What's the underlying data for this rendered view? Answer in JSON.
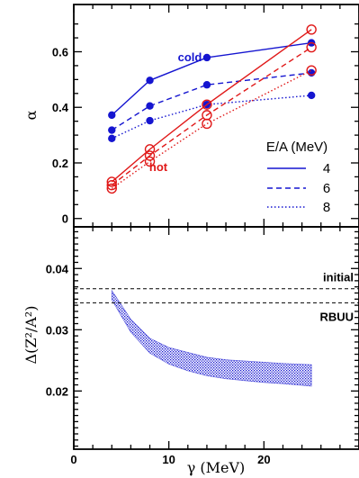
{
  "chart_data": [
    {
      "type": "line",
      "ylabel": "α",
      "xlim": [
        0,
        30
      ],
      "ylim": [
        -0.03,
        0.77
      ],
      "yticks": [
        "0",
        "0.2",
        "0.4",
        "0.6"
      ],
      "colors": {
        "cold": "#1515d0",
        "hot": "#e01818"
      },
      "series": [
        {
          "group": "cold",
          "ea": "4",
          "style": "solid",
          "marker": "filled",
          "x": [
            4,
            8,
            14,
            25
          ],
          "y": [
            0.372,
            0.497,
            0.579,
            0.632
          ]
        },
        {
          "group": "cold",
          "ea": "6",
          "style": "dashed",
          "marker": "filled",
          "x": [
            4,
            8,
            14,
            25
          ],
          "y": [
            0.318,
            0.405,
            0.481,
            0.524
          ]
        },
        {
          "group": "cold",
          "ea": "8",
          "style": "dotted",
          "marker": "filled",
          "x": [
            4,
            8,
            14,
            25
          ],
          "y": [
            0.288,
            0.352,
            0.41,
            0.443
          ]
        },
        {
          "group": "hot",
          "ea": "4",
          "style": "solid",
          "marker": "open",
          "x": [
            4,
            8,
            14,
            25
          ],
          "y": [
            0.132,
            0.249,
            0.41,
            0.68
          ]
        },
        {
          "group": "hot",
          "ea": "6",
          "style": "dashed",
          "marker": "open",
          "x": [
            4,
            8,
            14,
            25
          ],
          "y": [
            0.12,
            0.226,
            0.372,
            0.616
          ]
        },
        {
          "group": "hot",
          "ea": "8",
          "style": "dotted",
          "marker": "open",
          "x": [
            4,
            8,
            14,
            25
          ],
          "y": [
            0.108,
            0.205,
            0.341,
            0.533
          ]
        }
      ],
      "annotations": {
        "cold": "cold",
        "hot": "hot"
      },
      "legend": {
        "title": "E/A (MeV)",
        "placement": "right",
        "entries": [
          {
            "label": "4",
            "style": "solid"
          },
          {
            "label": "6",
            "style": "dashed"
          },
          {
            "label": "8",
            "style": "dotted"
          }
        ]
      }
    },
    {
      "type": "area",
      "ylabel": "Δ(Z²/A²)",
      "xlabel": "γ (MeV)",
      "xlim": [
        0,
        30
      ],
      "ylim": [
        0.0105,
        0.0468
      ],
      "xticks": [
        "0",
        "10",
        "20"
      ],
      "yticks": [
        "0.02",
        "0.03",
        "0.04"
      ],
      "band": {
        "color": "#1515d0",
        "x": [
          4,
          6,
          8,
          10,
          12,
          14,
          16,
          18,
          20,
          22,
          25
        ],
        "upper": [
          0.0364,
          0.0317,
          0.0286,
          0.0271,
          0.0263,
          0.0255,
          0.0251,
          0.0249,
          0.0247,
          0.0245,
          0.0243
        ],
        "lower": [
          0.0349,
          0.0296,
          0.0262,
          0.0244,
          0.0233,
          0.0225,
          0.022,
          0.0217,
          0.0214,
          0.0212,
          0.0208
        ]
      },
      "hlines": [
        {
          "label": "initial",
          "y": 0.0367
        },
        {
          "label": "RBUU",
          "y": 0.0344
        }
      ]
    }
  ]
}
